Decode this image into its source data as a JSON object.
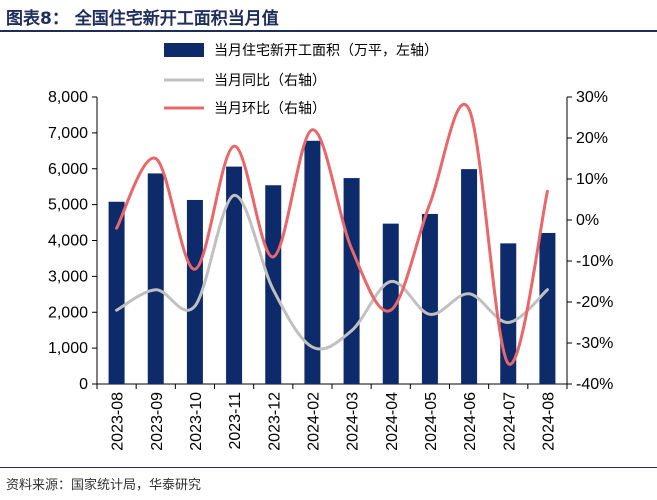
{
  "header": {
    "title": "图表8：  全国住宅新开工面积当月值"
  },
  "footer": {
    "source": "资料来源：国家统计局，华泰研究"
  },
  "chart_data": {
    "type": "bar+line",
    "categories": [
      "2023-08",
      "2023-09",
      "2023-10",
      "2023-11",
      "2023-12",
      "2024-02",
      "2024-03",
      "2024-04",
      "2024-05",
      "2024-06",
      "2024-07",
      "2024-08"
    ],
    "left_axis": {
      "min": 0,
      "max": 8000,
      "step": 1000,
      "ticks": [
        "0",
        "1,000",
        "2,000",
        "3,000",
        "4,000",
        "5,000",
        "6,000",
        "7,000",
        "8,000"
      ]
    },
    "right_axis": {
      "min": -40,
      "max": 30,
      "step": 10,
      "ticks": [
        "-40%",
        "-30%",
        "-20%",
        "-10%",
        "0%",
        "10%",
        "20%",
        "30%"
      ]
    },
    "series": [
      {
        "name": "当月住宅新开工面积（万平，左轴）",
        "kind": "bar",
        "axis": "left",
        "color": "#0d2a6b",
        "values": [
          5080,
          5870,
          5130,
          6060,
          5540,
          6780,
          5740,
          4470,
          4740,
          5990,
          3920,
          4210
        ]
      },
      {
        "name": "当月同比（右轴）",
        "kind": "line",
        "axis": "right",
        "color": "#c0c0c0",
        "values": [
          -22,
          -17,
          -21,
          6,
          -17,
          -31,
          -27,
          -15,
          -23,
          -18,
          -25,
          -17
        ]
      },
      {
        "name": "当月环比（右轴）",
        "kind": "line",
        "axis": "right",
        "color": "#e8676b",
        "values": [
          -2,
          15,
          -12,
          18,
          -9,
          22,
          -7,
          -22,
          4,
          27,
          -35,
          7
        ]
      }
    ],
    "legend_position": "top-center",
    "grid": false
  }
}
